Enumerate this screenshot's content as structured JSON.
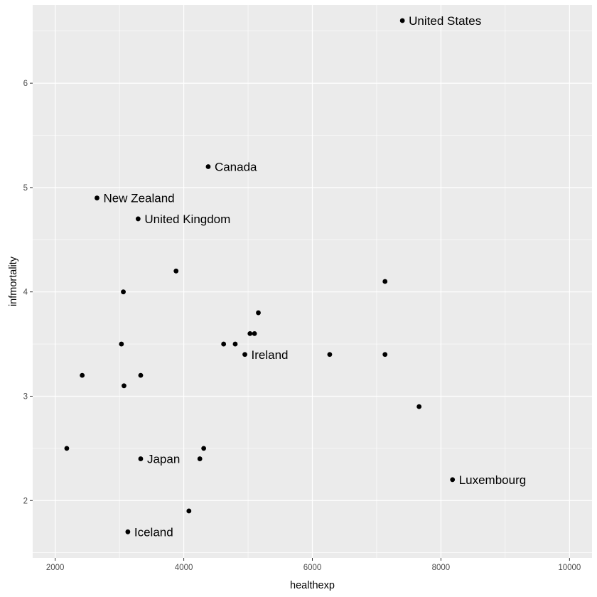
{
  "chart_data": {
    "type": "scatter",
    "xlabel": "healthexp",
    "ylabel": "infmortality",
    "xlim": [
      1650,
      10350
    ],
    "ylim": [
      1.45,
      6.75
    ],
    "x_ticks": [
      2000,
      4000,
      6000,
      8000,
      10000
    ],
    "y_ticks": [
      2,
      3,
      4,
      5,
      6
    ],
    "x_tick_labels": [
      "2000",
      "4000",
      "6000",
      "8000",
      "10000"
    ],
    "y_tick_labels": [
      "2",
      "3",
      "4",
      "5",
      "6"
    ],
    "grid": true,
    "colors": {
      "panel": "#ebebeb",
      "grid": "#ffffff",
      "point": "#000000"
    },
    "points": [
      {
        "x": 7400,
        "y": 6.6,
        "label": "United States"
      },
      {
        "x": 4380,
        "y": 5.2,
        "label": "Canada"
      },
      {
        "x": 2650,
        "y": 4.9,
        "label": "New Zealand"
      },
      {
        "x": 3290,
        "y": 4.7,
        "label": "United Kingdom"
      },
      {
        "x": 3880,
        "y": 4.2
      },
      {
        "x": 3060,
        "y": 4.0
      },
      {
        "x": 7130,
        "y": 4.1
      },
      {
        "x": 5160,
        "y": 3.8
      },
      {
        "x": 5030,
        "y": 3.6
      },
      {
        "x": 5100,
        "y": 3.6
      },
      {
        "x": 3030,
        "y": 3.5
      },
      {
        "x": 4620,
        "y": 3.5
      },
      {
        "x": 4800,
        "y": 3.5
      },
      {
        "x": 4950,
        "y": 3.4,
        "label": "Ireland"
      },
      {
        "x": 6270,
        "y": 3.4
      },
      {
        "x": 7130,
        "y": 3.4
      },
      {
        "x": 2420,
        "y": 3.2
      },
      {
        "x": 3330,
        "y": 3.2
      },
      {
        "x": 3070,
        "y": 3.1
      },
      {
        "x": 7660,
        "y": 2.9
      },
      {
        "x": 2180,
        "y": 2.5
      },
      {
        "x": 4310,
        "y": 2.5
      },
      {
        "x": 4250,
        "y": 2.4
      },
      {
        "x": 3330,
        "y": 2.4,
        "label": "Japan"
      },
      {
        "x": 8180,
        "y": 2.2,
        "label": "Luxembourg"
      },
      {
        "x": 4080,
        "y": 1.9
      },
      {
        "x": 3130,
        "y": 1.7,
        "label": "Iceland"
      }
    ]
  }
}
